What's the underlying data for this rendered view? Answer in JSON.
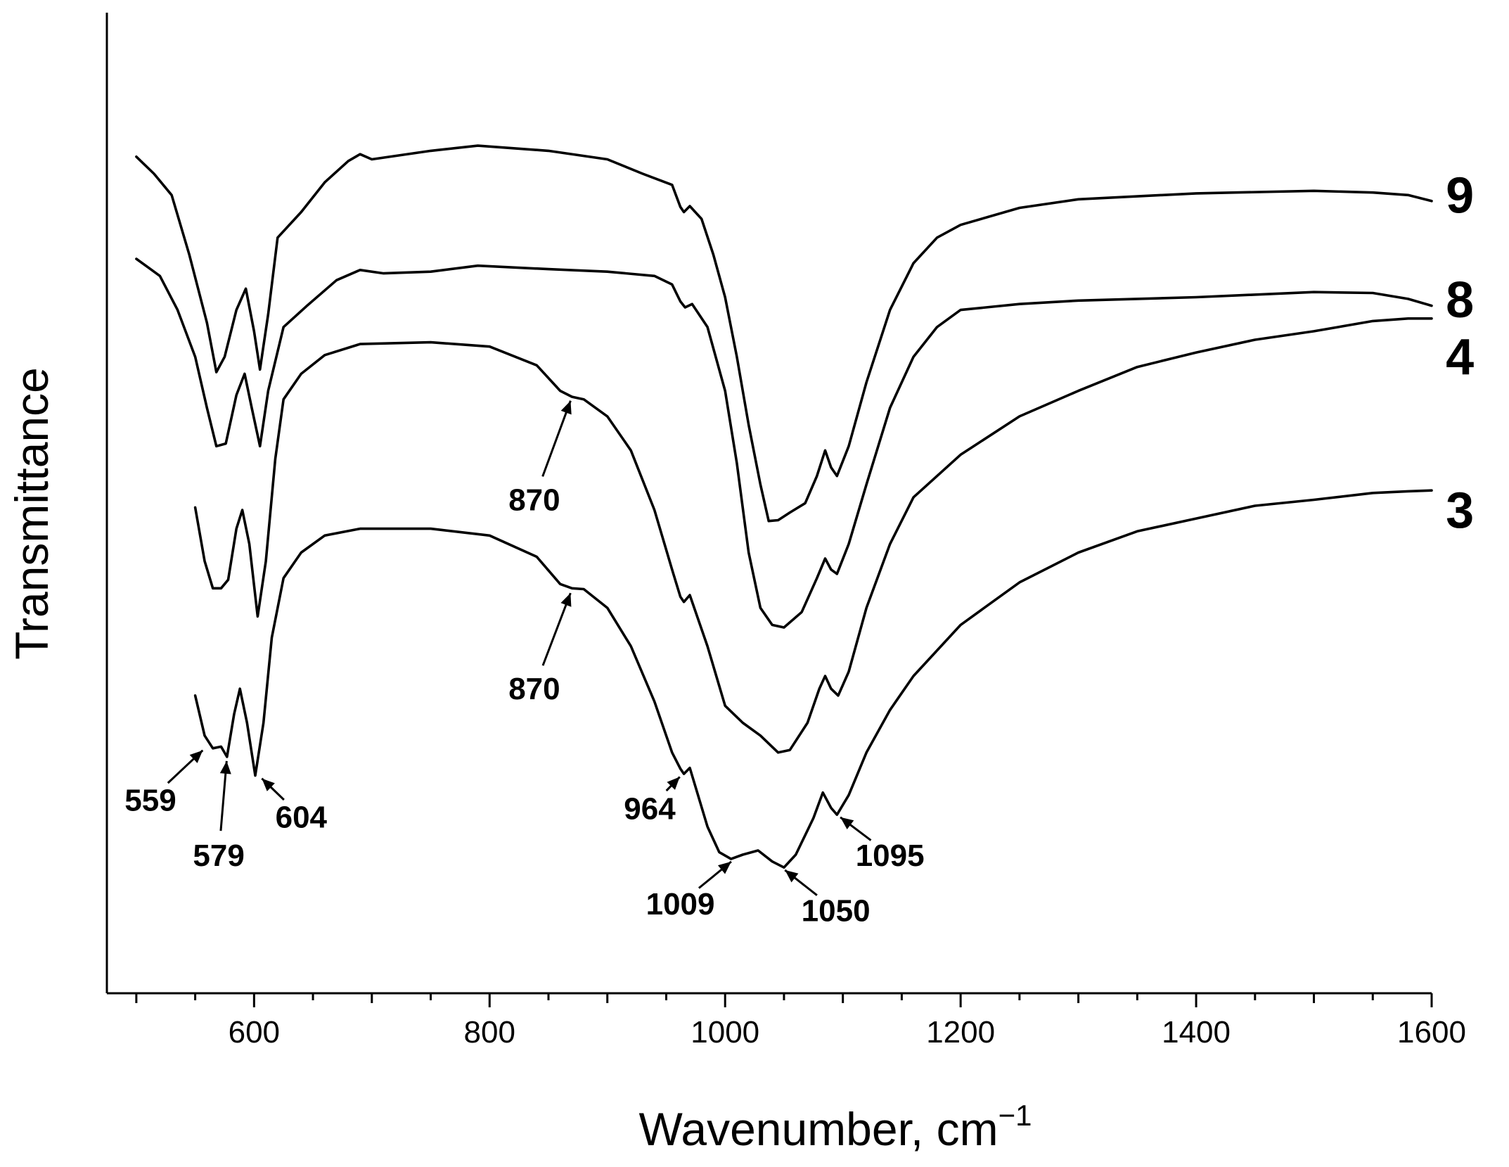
{
  "chart_data": {
    "type": "line",
    "title": "",
    "xlabel": "Wavenumber, cm",
    "xlabel_superscript": "−1",
    "ylabel": "Transmittance",
    "xlim": [
      475,
      1600
    ],
    "ylim": [
      0,
      1
    ],
    "x_ticks": [
      600,
      800,
      1000,
      1200,
      1400,
      1600
    ],
    "x_tick_labels": [
      "600",
      "800",
      "1000",
      "1200",
      "1400",
      "1600"
    ],
    "x_minor_step": 100,
    "grid": false,
    "legend": "none",
    "series": [
      {
        "name": "9",
        "points": [
          [
            500,
            0.915
          ],
          [
            515,
            0.895
          ],
          [
            530,
            0.87
          ],
          [
            545,
            0.8
          ],
          [
            560,
            0.72
          ],
          [
            568,
            0.662
          ],
          [
            575,
            0.68
          ],
          [
            585,
            0.735
          ],
          [
            593,
            0.76
          ],
          [
            600,
            0.71
          ],
          [
            605,
            0.665
          ],
          [
            612,
            0.73
          ],
          [
            620,
            0.82
          ],
          [
            640,
            0.85
          ],
          [
            660,
            0.885
          ],
          [
            680,
            0.91
          ],
          [
            690,
            0.918
          ],
          [
            700,
            0.912
          ],
          [
            750,
            0.922
          ],
          [
            790,
            0.928
          ],
          [
            850,
            0.922
          ],
          [
            900,
            0.912
          ],
          [
            930,
            0.895
          ],
          [
            955,
            0.882
          ],
          [
            962,
            0.856
          ],
          [
            965,
            0.85
          ],
          [
            970,
            0.857
          ],
          [
            980,
            0.842
          ],
          [
            990,
            0.8
          ],
          [
            1000,
            0.75
          ],
          [
            1010,
            0.68
          ],
          [
            1020,
            0.6
          ],
          [
            1030,
            0.53
          ],
          [
            1037,
            0.487
          ],
          [
            1045,
            0.488
          ],
          [
            1055,
            0.497
          ],
          [
            1068,
            0.508
          ],
          [
            1078,
            0.54
          ],
          [
            1085,
            0.57
          ],
          [
            1090,
            0.55
          ],
          [
            1095,
            0.54
          ],
          [
            1105,
            0.575
          ],
          [
            1120,
            0.65
          ],
          [
            1140,
            0.735
          ],
          [
            1160,
            0.79
          ],
          [
            1180,
            0.82
          ],
          [
            1200,
            0.835
          ],
          [
            1250,
            0.855
          ],
          [
            1300,
            0.865
          ],
          [
            1400,
            0.872
          ],
          [
            1500,
            0.875
          ],
          [
            1550,
            0.873
          ],
          [
            1580,
            0.87
          ],
          [
            1600,
            0.863
          ]
        ]
      },
      {
        "name": "8",
        "points": [
          [
            500,
            0.795
          ],
          [
            510,
            0.785
          ],
          [
            520,
            0.775
          ],
          [
            535,
            0.735
          ],
          [
            550,
            0.68
          ],
          [
            560,
            0.62
          ],
          [
            568,
            0.575
          ],
          [
            576,
            0.578
          ],
          [
            585,
            0.635
          ],
          [
            592,
            0.66
          ],
          [
            598,
            0.62
          ],
          [
            605,
            0.575
          ],
          [
            612,
            0.64
          ],
          [
            625,
            0.715
          ],
          [
            645,
            0.74
          ],
          [
            670,
            0.77
          ],
          [
            690,
            0.782
          ],
          [
            710,
            0.778
          ],
          [
            750,
            0.78
          ],
          [
            790,
            0.787
          ],
          [
            850,
            0.783
          ],
          [
            900,
            0.78
          ],
          [
            940,
            0.775
          ],
          [
            955,
            0.765
          ],
          [
            962,
            0.745
          ],
          [
            966,
            0.738
          ],
          [
            972,
            0.742
          ],
          [
            985,
            0.715
          ],
          [
            1000,
            0.64
          ],
          [
            1010,
            0.555
          ],
          [
            1020,
            0.45
          ],
          [
            1030,
            0.385
          ],
          [
            1040,
            0.365
          ],
          [
            1050,
            0.362
          ],
          [
            1065,
            0.38
          ],
          [
            1078,
            0.42
          ],
          [
            1085,
            0.443
          ],
          [
            1090,
            0.43
          ],
          [
            1095,
            0.425
          ],
          [
            1105,
            0.46
          ],
          [
            1120,
            0.53
          ],
          [
            1140,
            0.62
          ],
          [
            1160,
            0.68
          ],
          [
            1180,
            0.715
          ],
          [
            1200,
            0.735
          ],
          [
            1250,
            0.742
          ],
          [
            1300,
            0.746
          ],
          [
            1400,
            0.75
          ],
          [
            1500,
            0.756
          ],
          [
            1550,
            0.755
          ],
          [
            1580,
            0.748
          ],
          [
            1600,
            0.74
          ]
        ]
      },
      {
        "name": "4",
        "points": [
          [
            550,
            0.503
          ],
          [
            558,
            0.44
          ],
          [
            565,
            0.408
          ],
          [
            572,
            0.408
          ],
          [
            578,
            0.418
          ],
          [
            585,
            0.478
          ],
          [
            590,
            0.5
          ],
          [
            596,
            0.46
          ],
          [
            603,
            0.375
          ],
          [
            610,
            0.44
          ],
          [
            618,
            0.56
          ],
          [
            625,
            0.63
          ],
          [
            640,
            0.66
          ],
          [
            660,
            0.682
          ],
          [
            690,
            0.695
          ],
          [
            750,
            0.697
          ],
          [
            800,
            0.692
          ],
          [
            840,
            0.67
          ],
          [
            860,
            0.64
          ],
          [
            870,
            0.633
          ],
          [
            880,
            0.63
          ],
          [
            900,
            0.61
          ],
          [
            920,
            0.57
          ],
          [
            940,
            0.5
          ],
          [
            955,
            0.43
          ],
          [
            962,
            0.398
          ],
          [
            965,
            0.392
          ],
          [
            970,
            0.4
          ],
          [
            985,
            0.34
          ],
          [
            1000,
            0.27
          ],
          [
            1015,
            0.25
          ],
          [
            1030,
            0.235
          ],
          [
            1045,
            0.215
          ],
          [
            1055,
            0.218
          ],
          [
            1070,
            0.25
          ],
          [
            1080,
            0.29
          ],
          [
            1085,
            0.305
          ],
          [
            1090,
            0.29
          ],
          [
            1096,
            0.282
          ],
          [
            1105,
            0.31
          ],
          [
            1120,
            0.385
          ],
          [
            1140,
            0.46
          ],
          [
            1160,
            0.515
          ],
          [
            1200,
            0.565
          ],
          [
            1250,
            0.61
          ],
          [
            1300,
            0.64
          ],
          [
            1350,
            0.668
          ],
          [
            1400,
            0.685
          ],
          [
            1450,
            0.7
          ],
          [
            1500,
            0.71
          ],
          [
            1550,
            0.722
          ],
          [
            1580,
            0.725
          ],
          [
            1600,
            0.725
          ]
        ]
      },
      {
        "name": "3",
        "points": [
          [
            550,
            0.282
          ],
          [
            558,
            0.235
          ],
          [
            565,
            0.22
          ],
          [
            572,
            0.222
          ],
          [
            577,
            0.21
          ],
          [
            583,
            0.26
          ],
          [
            588,
            0.29
          ],
          [
            594,
            0.25
          ],
          [
            601,
            0.188
          ],
          [
            608,
            0.25
          ],
          [
            615,
            0.35
          ],
          [
            625,
            0.42
          ],
          [
            640,
            0.45
          ],
          [
            660,
            0.47
          ],
          [
            690,
            0.478
          ],
          [
            750,
            0.478
          ],
          [
            800,
            0.47
          ],
          [
            840,
            0.445
          ],
          [
            860,
            0.413
          ],
          [
            870,
            0.408
          ],
          [
            880,
            0.407
          ],
          [
            900,
            0.385
          ],
          [
            920,
            0.34
          ],
          [
            940,
            0.275
          ],
          [
            955,
            0.215
          ],
          [
            962,
            0.196
          ],
          [
            965,
            0.19
          ],
          [
            970,
            0.197
          ],
          [
            985,
            0.128
          ],
          [
            995,
            0.098
          ],
          [
            1005,
            0.09
          ],
          [
            1015,
            0.095
          ],
          [
            1028,
            0.1
          ],
          [
            1040,
            0.087
          ],
          [
            1050,
            0.08
          ],
          [
            1060,
            0.095
          ],
          [
            1075,
            0.138
          ],
          [
            1083,
            0.168
          ],
          [
            1090,
            0.15
          ],
          [
            1095,
            0.142
          ],
          [
            1105,
            0.165
          ],
          [
            1120,
            0.215
          ],
          [
            1140,
            0.265
          ],
          [
            1160,
            0.305
          ],
          [
            1200,
            0.365
          ],
          [
            1250,
            0.415
          ],
          [
            1300,
            0.45
          ],
          [
            1350,
            0.475
          ],
          [
            1400,
            0.49
          ],
          [
            1450,
            0.505
          ],
          [
            1500,
            0.512
          ],
          [
            1550,
            0.52
          ],
          [
            1580,
            0.522
          ],
          [
            1600,
            0.523
          ]
        ]
      }
    ],
    "series_labels": [
      {
        "text": "9",
        "x": 1612,
        "y": 0.87
      },
      {
        "text": "8",
        "x": 1612,
        "y": 0.747
      },
      {
        "text": "4",
        "x": 1612,
        "y": 0.68
      },
      {
        "text": "3",
        "x": 1612,
        "y": 0.5
      }
    ],
    "annotations": [
      {
        "text": "870",
        "peak": [
          870,
          0.633
        ],
        "label_at": [
          838,
          0.513
        ]
      },
      {
        "text": "870",
        "peak": [
          870,
          0.407
        ],
        "label_at": [
          838,
          0.291
        ]
      },
      {
        "text": "559",
        "peak": [
          559,
          0.221
        ],
        "label_at": [
          512,
          0.16
        ]
      },
      {
        "text": "579",
        "peak": [
          577,
          0.21
        ],
        "label_at": [
          570,
          0.095
        ]
      },
      {
        "text": "604",
        "peak": [
          604,
          0.188
        ],
        "label_at": [
          640,
          0.14
        ]
      },
      {
        "text": "964",
        "peak": [
          964,
          0.19
        ],
        "label_at": [
          936,
          0.15
        ]
      },
      {
        "text": "1009",
        "peak": [
          1008,
          0.09
        ],
        "label_at": [
          962,
          0.038
        ]
      },
      {
        "text": "1050",
        "peak": [
          1048,
          0.08
        ],
        "label_at": [
          1094,
          0.03
        ]
      },
      {
        "text": "1095",
        "peak": [
          1095,
          0.142
        ],
        "label_at": [
          1140,
          0.095
        ]
      }
    ]
  }
}
